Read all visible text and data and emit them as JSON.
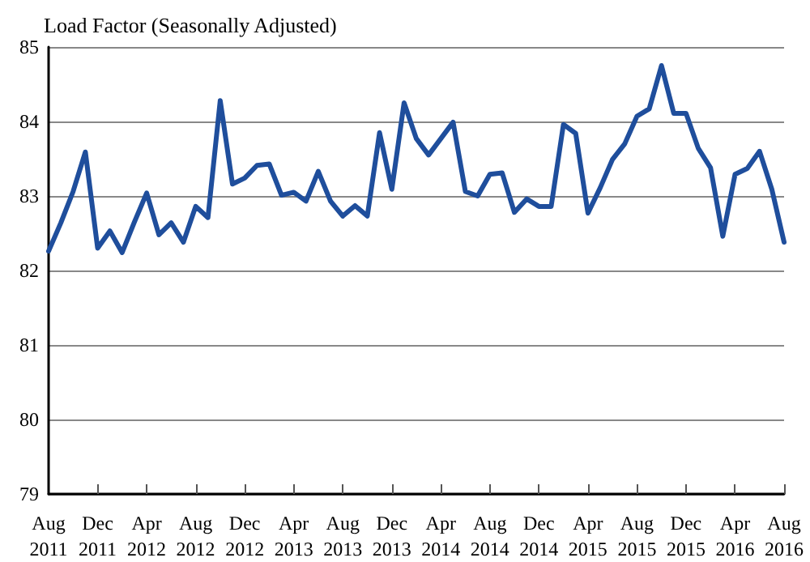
{
  "chart_data": {
    "type": "line",
    "title": "Load Factor (Seasonally Adjusted)",
    "categories": [
      "Aug 2011",
      null,
      null,
      null,
      "Dec 2011",
      null,
      null,
      null,
      "Apr 2012",
      null,
      null,
      null,
      "Aug 2012",
      null,
      null,
      null,
      "Dec 2012",
      null,
      null,
      null,
      "Apr 2013",
      null,
      null,
      null,
      "Aug 2013",
      null,
      null,
      null,
      "Dec 2013",
      null,
      null,
      null,
      "Apr 2014",
      null,
      null,
      null,
      "Aug 2014",
      null,
      null,
      null,
      "Dec 2014",
      null,
      null,
      null,
      "Apr 2015",
      null,
      null,
      null,
      "Aug 2015",
      null,
      null,
      null,
      "Dec 2015",
      null,
      null,
      null,
      "Apr 2016",
      null,
      null,
      null,
      "Aug 2016"
    ],
    "series": [
      {
        "color": "#1f4e9c",
        "values": [
          82.26,
          82.64,
          83.06,
          83.59,
          82.3,
          82.53,
          82.24,
          82.65,
          83.04,
          82.48,
          82.64,
          82.38,
          82.86,
          82.71,
          84.28,
          83.16,
          83.24,
          83.41,
          83.43,
          83.01,
          83.05,
          82.93,
          83.33,
          82.93,
          82.73,
          82.87,
          82.73,
          83.85,
          83.09,
          84.25,
          83.77,
          83.55,
          83.77,
          83.99,
          83.06,
          83.0,
          83.29,
          83.31,
          82.78,
          82.96,
          82.86,
          82.86,
          83.96,
          83.84,
          82.77,
          83.11,
          83.49,
          83.7,
          84.07,
          84.17,
          84.75,
          84.11,
          84.11,
          83.64,
          83.38,
          82.46,
          83.29,
          83.37,
          83.6,
          83.09,
          82.38
        ]
      }
    ],
    "ylim": [
      79,
      85
    ],
    "yticks": [
      79,
      80,
      81,
      82,
      83,
      84,
      85
    ],
    "grid": "y",
    "marker": "none",
    "line_style": "solid"
  }
}
